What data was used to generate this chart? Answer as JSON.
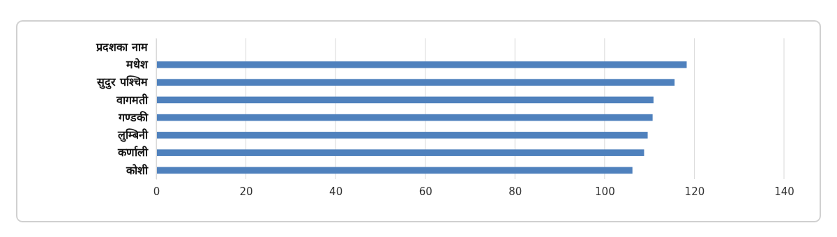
{
  "chart_data": {
    "type": "bar",
    "orientation": "horizontal",
    "categories": [
      "प्रदशका नाम",
      "मधेश",
      "सुदुर पश्चिम",
      "वागमती",
      "गण्डकी",
      "लुम्बिनी",
      "कर्णाली",
      "कोशी"
    ],
    "values": [
      null,
      118.3,
      115.6,
      110.9,
      110.7,
      109.6,
      108.8,
      106.2
    ],
    "color": "#4f81bd",
    "xlim": [
      0,
      140
    ],
    "xticks": [
      0,
      20,
      40,
      60,
      80,
      100,
      120,
      140
    ],
    "grid": "x"
  }
}
